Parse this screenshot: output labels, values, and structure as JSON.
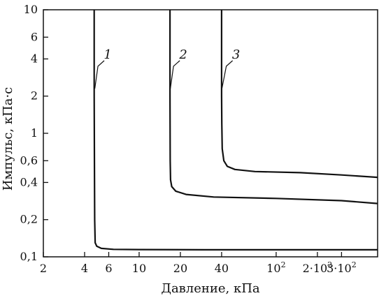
{
  "chart_data": {
    "type": "line",
    "xlabel": "Давление, кПа",
    "ylabel": "Импульс, кПа·с",
    "x_scale": "log",
    "y_scale": "log",
    "xlim": [
      2,
      550
    ],
    "ylim": [
      0.1,
      10
    ],
    "grid": false,
    "x_ticks": [
      {
        "value": 2,
        "label": "2"
      },
      {
        "value": 4,
        "label": "4"
      },
      {
        "value": 6,
        "label": "6"
      },
      {
        "value": 10,
        "label": "10"
      },
      {
        "value": 20,
        "label": "20"
      },
      {
        "value": 40,
        "label": "40"
      },
      {
        "value": 100,
        "label": "10",
        "sup": "2"
      },
      {
        "value": 200,
        "label": "2·10",
        "sup": "2"
      },
      {
        "value": 300,
        "label": "3·10",
        "sup": "2"
      }
    ],
    "y_ticks": [
      {
        "value": 0.1,
        "label": "0,1"
      },
      {
        "value": 0.2,
        "label": "0,2"
      },
      {
        "value": 0.4,
        "label": "0,4"
      },
      {
        "value": 0.6,
        "label": "0,6"
      },
      {
        "value": 1,
        "label": "1"
      },
      {
        "value": 2,
        "label": "2"
      },
      {
        "value": 4,
        "label": "4"
      },
      {
        "value": 6,
        "label": "6"
      },
      {
        "value": 10,
        "label": "10"
      }
    ],
    "series": [
      {
        "label": "1",
        "label_at": {
          "x": 5.9,
          "y": 4.3
        },
        "leader_to": {
          "x": 4.75,
          "y": 2.3
        },
        "points": [
          [
            4.7,
            10
          ],
          [
            4.7,
            2
          ],
          [
            4.72,
            0.5
          ],
          [
            4.74,
            0.2
          ],
          [
            4.78,
            0.13
          ],
          [
            4.9,
            0.122
          ],
          [
            5.3,
            0.117
          ],
          [
            6.5,
            0.115
          ],
          [
            10,
            0.1145
          ],
          [
            30,
            0.114
          ],
          [
            100,
            0.114
          ],
          [
            550,
            0.114
          ]
        ]
      },
      {
        "label": "2",
        "label_at": {
          "x": 21,
          "y": 4.3
        },
        "leader_to": {
          "x": 16.9,
          "y": 2.3
        },
        "points": [
          [
            16.8,
            10
          ],
          [
            16.8,
            2
          ],
          [
            16.85,
            0.6
          ],
          [
            16.95,
            0.42
          ],
          [
            17.3,
            0.37
          ],
          [
            18.5,
            0.34
          ],
          [
            22,
            0.32
          ],
          [
            35,
            0.305
          ],
          [
            100,
            0.297
          ],
          [
            300,
            0.285
          ],
          [
            550,
            0.27
          ]
        ]
      },
      {
        "label": "3",
        "label_at": {
          "x": 51,
          "y": 4.3
        },
        "leader_to": {
          "x": 40.2,
          "y": 2.3
        },
        "points": [
          [
            40,
            10
          ],
          [
            40,
            2
          ],
          [
            40.1,
            1.2
          ],
          [
            40.4,
            0.75
          ],
          [
            41.5,
            0.6
          ],
          [
            44,
            0.54
          ],
          [
            50,
            0.51
          ],
          [
            70,
            0.49
          ],
          [
            150,
            0.48
          ],
          [
            300,
            0.46
          ],
          [
            550,
            0.44
          ]
        ]
      }
    ]
  }
}
